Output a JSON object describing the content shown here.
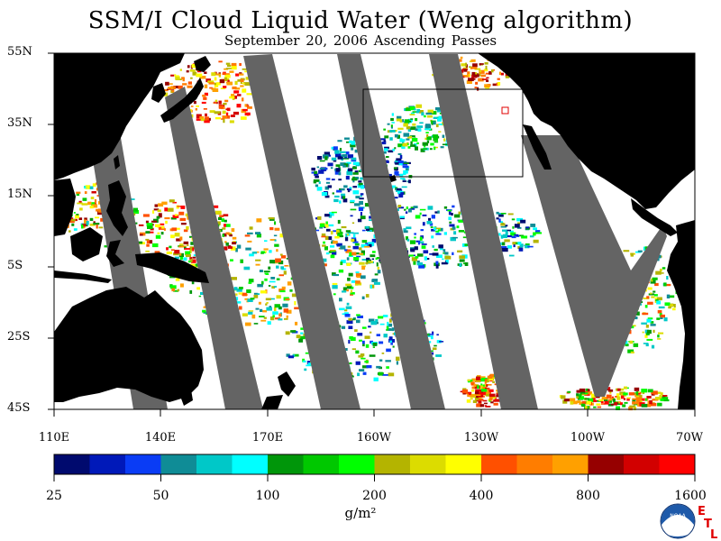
{
  "title": "SSM/I Cloud Liquid Water (Weng algorithm)",
  "subtitle": "September 20, 2006  Ascending Passes",
  "map": {
    "latitude_labels": [
      "55N",
      "35N",
      "15N",
      "5S",
      "25S",
      "45S"
    ],
    "longitude_labels": [
      "110E",
      "140E",
      "170E",
      "160W",
      "130W",
      "100W",
      "70W"
    ],
    "land_color": "#000000",
    "no_data_color": "#646464",
    "ocean_clear_color": "#ffffff",
    "box_outline_color": "#000000",
    "marker_color": "#e00000"
  },
  "colorbar": {
    "colors": [
      "#000a6e",
      "#0019b9",
      "#0a3cf5",
      "#0f8c96",
      "#00c8c8",
      "#00ffff",
      "#00960a",
      "#00c800",
      "#00ff00",
      "#b4b400",
      "#dcdc00",
      "#ffff00",
      "#ff5000",
      "#ff7d00",
      "#ffa000",
      "#960000",
      "#d20000",
      "#ff0000"
    ],
    "tick_labels": [
      "25",
      "50",
      "100",
      "200",
      "400",
      "800",
      "1600"
    ],
    "units": "g/m²"
  },
  "logo": {
    "text": "NOAA",
    "letters": [
      "E",
      "T",
      "L"
    ]
  }
}
